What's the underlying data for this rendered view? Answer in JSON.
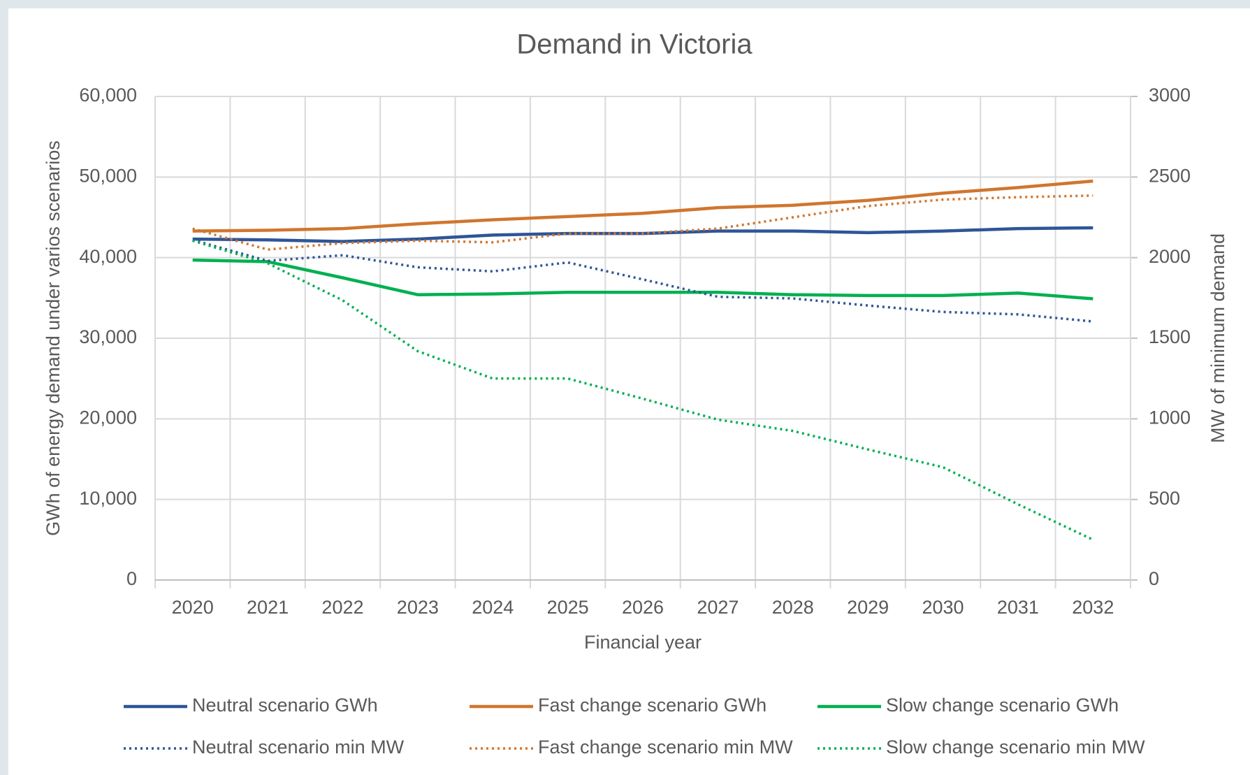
{
  "chart_data": {
    "type": "line",
    "title": "Demand in Victoria",
    "x_label": "Financial year",
    "y_label": "GWh of energy demand under varios scenarios",
    "y2_label": "MW of minimum demand",
    "categories": [
      "2020",
      "2021",
      "2022",
      "2023",
      "2024",
      "2025",
      "2026",
      "2027",
      "2028",
      "2029",
      "2030",
      "2031",
      "2032"
    ],
    "ylim": [
      0,
      60000
    ],
    "yticks": [
      0,
      {
        "value": 10000,
        "label": "10,000"
      },
      {
        "value": 20000,
        "label": "20,000"
      },
      {
        "value": 30000,
        "label": "30,000"
      },
      {
        "value": 40000,
        "label": "40,000"
      },
      {
        "value": 50000,
        "label": "50,000"
      },
      {
        "value": 60000,
        "label": "60,000"
      }
    ],
    "y2lim": [
      0,
      3000
    ],
    "y2ticks": [
      0,
      500,
      1000,
      1500,
      2000,
      2500,
      3000
    ],
    "grid": true,
    "legend": "bottom",
    "series": [
      {
        "name": "Neutral scenario GWh",
        "color": "#2f5597",
        "style": "solid",
        "values": [
          42300,
          42200,
          42000,
          42300,
          42800,
          43000,
          43000,
          43300,
          43300,
          43100,
          43300,
          43600,
          43700
        ]
      },
      {
        "name": "Fast change scenario GWh",
        "color": "#d0762f",
        "style": "solid",
        "values": [
          43300,
          43400,
          43600,
          44200,
          44700,
          45100,
          45500,
          46200,
          46500,
          47100,
          48000,
          48700,
          49500
        ]
      },
      {
        "name": "Slow change scenario GWh",
        "color": "#00b050",
        "style": "solid",
        "values": [
          39700,
          39500,
          37500,
          35400,
          35500,
          35700,
          35700,
          35700,
          35400,
          35300,
          35300,
          35600,
          34900
        ]
      },
      {
        "name": "Neutral scenario min MW",
        "color": "#2f5597",
        "style": "dotted",
        "axis": "y2",
        "values": [
          2110,
          1980,
          2015,
          1940,
          1915,
          1970,
          1865,
          1757,
          1747,
          1703,
          1663,
          1648,
          1604
        ]
      },
      {
        "name": "Fast change scenario min MW",
        "color": "#d0762f",
        "style": "dotted",
        "axis": "y2",
        "values": [
          2180,
          2050,
          2090,
          2105,
          2095,
          2150,
          2150,
          2180,
          2250,
          2320,
          2360,
          2375,
          2385
        ]
      },
      {
        "name": "Slow change scenario min MW",
        "color": "#00b050",
        "style": "dotted",
        "axis": "y2",
        "values": [
          2105,
          1965,
          1735,
          1420,
          1250,
          1250,
          1125,
          995,
          925,
          810,
          700,
          470,
          250
        ]
      }
    ]
  }
}
